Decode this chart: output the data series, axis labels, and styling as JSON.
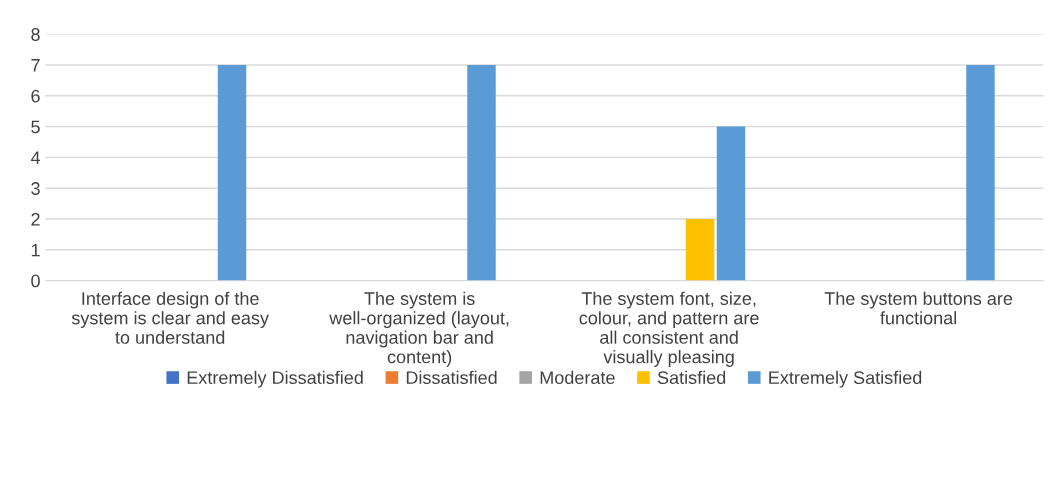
{
  "chart_data": {
    "type": "bar",
    "categories": [
      "Interface design of the system is clear and easy to understand",
      "The system is well-organized (layout, navigation bar and content)",
      "The system font, size, colour, and pattern are all consistent and visually pleasing",
      "The system buttons are functional"
    ],
    "series": [
      {
        "name": "Extremely Dissatisfied",
        "color": "#4472c4",
        "values": [
          0,
          0,
          0,
          0
        ]
      },
      {
        "name": "Dissatisfied",
        "color": "#ed7d31",
        "values": [
          0,
          0,
          0,
          0
        ]
      },
      {
        "name": "Moderate",
        "color": "#a5a5a5",
        "values": [
          0,
          0,
          0,
          0
        ]
      },
      {
        "name": "Satisfied",
        "color": "#ffc000",
        "values": [
          0,
          0,
          2,
          0
        ]
      },
      {
        "name": "Extremely Satisfied",
        "color": "#5b9bd5",
        "values": [
          7,
          7,
          5,
          7
        ]
      }
    ],
    "ylim": [
      0,
      8
    ],
    "yticks": [
      0,
      1,
      2,
      3,
      4,
      5,
      6,
      7,
      8
    ],
    "grid": "y",
    "legend": "bottom"
  }
}
